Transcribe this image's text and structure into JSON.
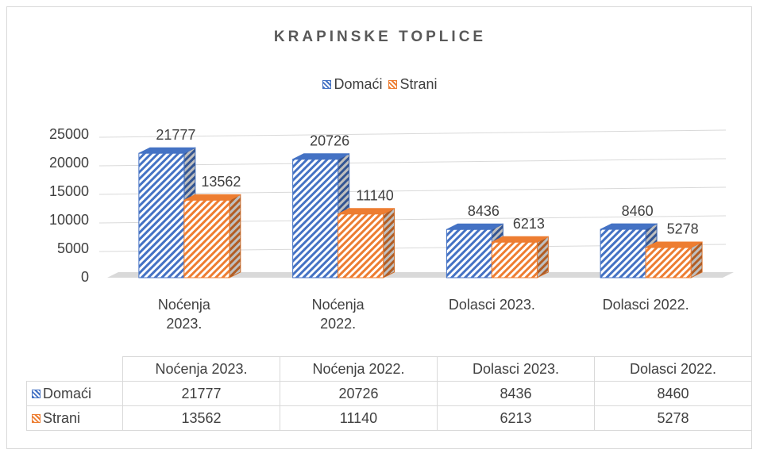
{
  "chart_data": {
    "type": "bar3d",
    "title": "KRAPINSKE TOPLICE",
    "categories": [
      "Noćenja 2023.",
      "Noćenja 2022.",
      "Dolasci 2023.",
      "Dolasci 2022."
    ],
    "series": [
      {
        "name": "Domaći",
        "color": "#4472c4",
        "values": [
          21777,
          20726,
          8436,
          8460
        ]
      },
      {
        "name": "Strani",
        "color": "#ed7d31",
        "values": [
          13562,
          11140,
          6213,
          5278
        ]
      }
    ],
    "ylim": [
      0,
      25000
    ],
    "yticks": [
      0,
      5000,
      10000,
      15000,
      20000,
      25000
    ],
    "grid": true,
    "legend": "top",
    "data_table": true
  }
}
